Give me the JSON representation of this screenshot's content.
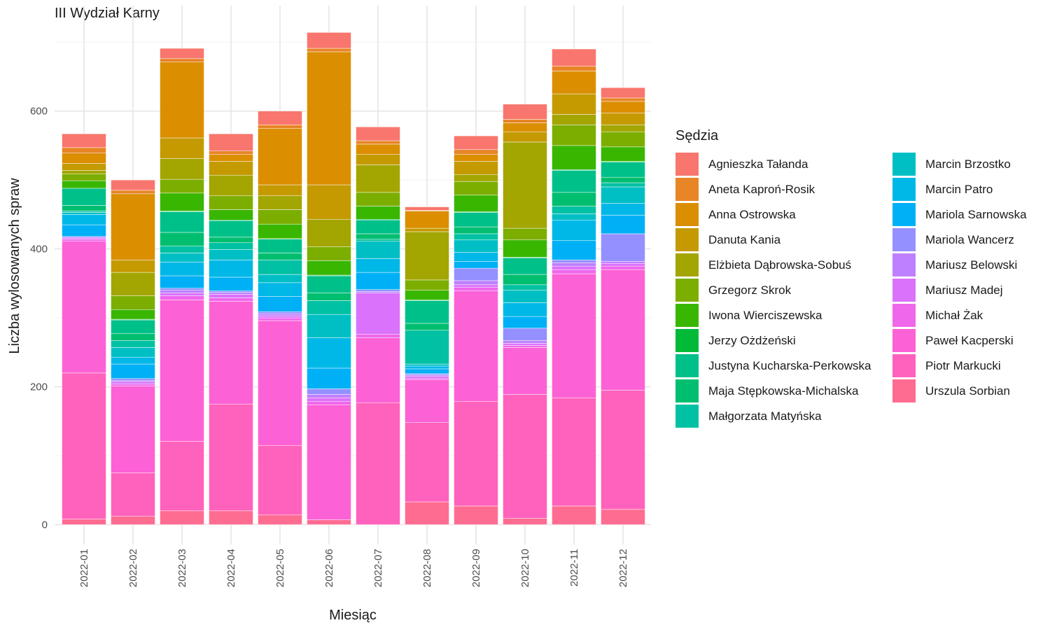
{
  "chart_data": {
    "type": "bar",
    "stacked": true,
    "title": "III Wydział Karny",
    "xlabel": "Miesiąc",
    "ylabel": "Liczba wylosowanych spraw",
    "ylim": [
      0,
      720
    ],
    "yticks": [
      0,
      200,
      400,
      600
    ],
    "grid": true,
    "legend_title": "Sędzia",
    "legend_position": "right",
    "categories": [
      "2022-01",
      "2022-02",
      "2022-03",
      "2022-04",
      "2022-05",
      "2022-06",
      "2022-07",
      "2022-08",
      "2022-09",
      "2022-10",
      "2022-11",
      "2022-12"
    ],
    "series": [
      {
        "name": "Urszula Sorbian",
        "color": "#FF6C91",
        "values": [
          8,
          12,
          20,
          20,
          14,
          7,
          0,
          33,
          27,
          9,
          27,
          22
        ]
      },
      {
        "name": "Piotr Markucki",
        "color": "#FF62BC",
        "values": [
          212,
          63,
          101,
          155,
          101,
          0,
          177,
          115,
          152,
          180,
          157,
          173
        ]
      },
      {
        "name": "Paweł Kacperski",
        "color": "#FC61D5",
        "values": [
          191,
          126,
          205,
          149,
          181,
          167,
          94,
          62,
          160,
          68,
          180,
          175
        ]
      },
      {
        "name": "Michał Żak",
        "color": "#EF67EB",
        "values": [
          3,
          3,
          6,
          5,
          4,
          5,
          5,
          2,
          5,
          3,
          6,
          5
        ]
      },
      {
        "name": "Mariusz Madej",
        "color": "#DB72FB",
        "values": [
          2,
          3,
          4,
          5,
          3,
          5,
          60,
          3,
          4,
          3,
          5,
          4
        ]
      },
      {
        "name": "Mariusz Belowski",
        "color": "#BF80FF",
        "values": [
          2,
          2,
          4,
          3,
          3,
          5,
          2,
          2,
          6,
          4,
          5,
          3
        ]
      },
      {
        "name": "Mariola Wancerz",
        "color": "#9590FF",
        "values": [
          0,
          3,
          3,
          2,
          3,
          8,
          3,
          2,
          18,
          18,
          4,
          40
        ]
      },
      {
        "name": "Mariola Sarnowska",
        "color": "#00B0F6",
        "values": [
          17,
          21,
          18,
          20,
          22,
          30,
          25,
          7,
          10,
          17,
          28,
          27
        ]
      },
      {
        "name": "Marcin Patro",
        "color": "#00B8E7",
        "values": [
          15,
          10,
          20,
          25,
          20,
          44,
          20,
          4,
          13,
          20,
          30,
          17
        ]
      },
      {
        "name": "Marcin Brzostko",
        "color": "#00BFC4",
        "values": [
          3,
          14,
          13,
          15,
          12,
          34,
          25,
          3,
          18,
          18,
          9,
          24
        ]
      },
      {
        "name": "Małgorzata Matyńska",
        "color": "#00C1A3",
        "values": [
          2,
          10,
          10,
          10,
          21,
          20,
          3,
          49,
          9,
          8,
          11,
          6
        ]
      },
      {
        "name": "Maja Stępkowska-Michalska",
        "color": "#00BE70",
        "values": [
          8,
          10,
          20,
          8,
          10,
          11,
          8,
          10,
          10,
          15,
          20,
          8
        ]
      },
      {
        "name": "Justyna Kucharska-Perkowska",
        "color": "#00C089",
        "values": [
          25,
          20,
          30,
          24,
          20,
          25,
          20,
          33,
          21,
          24,
          32,
          22
        ]
      },
      {
        "name": "Jerzy Ożdżeński",
        "color": "#00BA38",
        "values": [
          0,
          1,
          1,
          1,
          1,
          1,
          1,
          1,
          1,
          1,
          1,
          1
        ]
      },
      {
        "name": "Iwona Wierciszewska",
        "color": "#39B600",
        "values": [
          11,
          14,
          26,
          15,
          21,
          21,
          19,
          14,
          24,
          25,
          35,
          21
        ]
      },
      {
        "name": "Grzegorz Skrok",
        "color": "#7CAE00",
        "values": [
          10,
          20,
          20,
          20,
          21,
          20,
          20,
          15,
          20,
          17,
          30,
          22
        ]
      },
      {
        "name": "Elżbieta Dąbrowska-Sobuś",
        "color": "#A3A500",
        "values": [
          5,
          34,
          30,
          30,
          20,
          40,
          40,
          70,
          10,
          125,
          15,
          10
        ]
      },
      {
        "name": "Danuta Kania",
        "color": "#C49A00",
        "values": [
          10,
          18,
          30,
          20,
          16,
          50,
          15,
          5,
          19,
          15,
          30,
          17
        ]
      },
      {
        "name": "Anna Ostrowska",
        "color": "#DB8E00",
        "values": [
          15,
          96,
          110,
          10,
          82,
          193,
          15,
          25,
          10,
          13,
          33,
          17
        ]
      },
      {
        "name": "Aneta Kaproń-Rosik",
        "color": "#E88526",
        "values": [
          8,
          5,
          5,
          5,
          5,
          5,
          5,
          1,
          7,
          5,
          7,
          5
        ]
      },
      {
        "name": "Agnieszka Tałanda",
        "color": "#F8766D",
        "values": [
          20,
          15,
          15,
          25,
          20,
          23,
          20,
          5,
          20,
          22,
          25,
          15
        ]
      }
    ]
  }
}
